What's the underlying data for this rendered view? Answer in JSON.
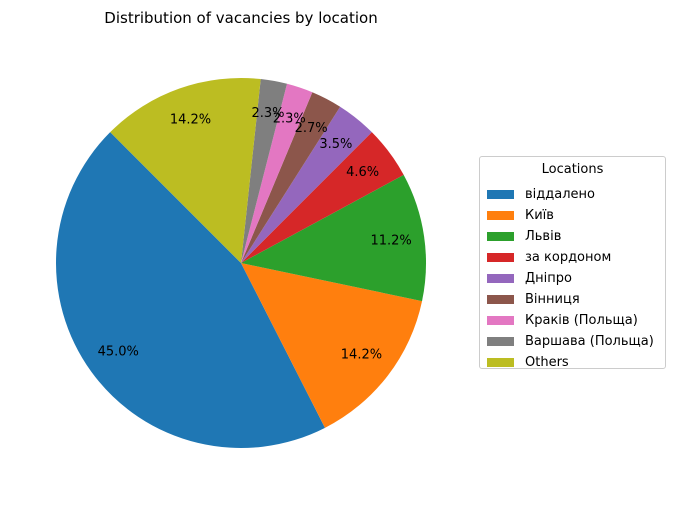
{
  "chart_data": {
    "type": "pie",
    "title": "Distribution of vacancies by location",
    "legend_title": "Locations",
    "legend_position": "right",
    "start_angle_deg": 135,
    "direction": "counterclockwise",
    "slices": [
      {
        "label": "віддалено",
        "value": 45.0,
        "pct_label": "45.0%",
        "color": "#1f77b4"
      },
      {
        "label": "Київ",
        "value": 14.2,
        "pct_label": "14.2%",
        "color": "#ff7f0e"
      },
      {
        "label": "Львів",
        "value": 11.2,
        "pct_label": "11.2%",
        "color": "#2ca02c"
      },
      {
        "label": "за кордоном",
        "value": 4.6,
        "pct_label": "4.6%",
        "color": "#d62728"
      },
      {
        "label": "Дніпро",
        "value": 3.5,
        "pct_label": "3.5%",
        "color": "#9467bd"
      },
      {
        "label": "Вінниця",
        "value": 2.7,
        "pct_label": "2.7%",
        "color": "#8c564b"
      },
      {
        "label": "Краків (Польща)",
        "value": 2.3,
        "pct_label": "2.3%",
        "color": "#e377c2"
      },
      {
        "label": "Варшава (Польща)",
        "value": 2.3,
        "pct_label": "2.3%",
        "color": "#7f7f7f"
      },
      {
        "label": "Others",
        "value": 14.2,
        "pct_label": "14.2%",
        "color": "#bcbd22"
      }
    ]
  }
}
